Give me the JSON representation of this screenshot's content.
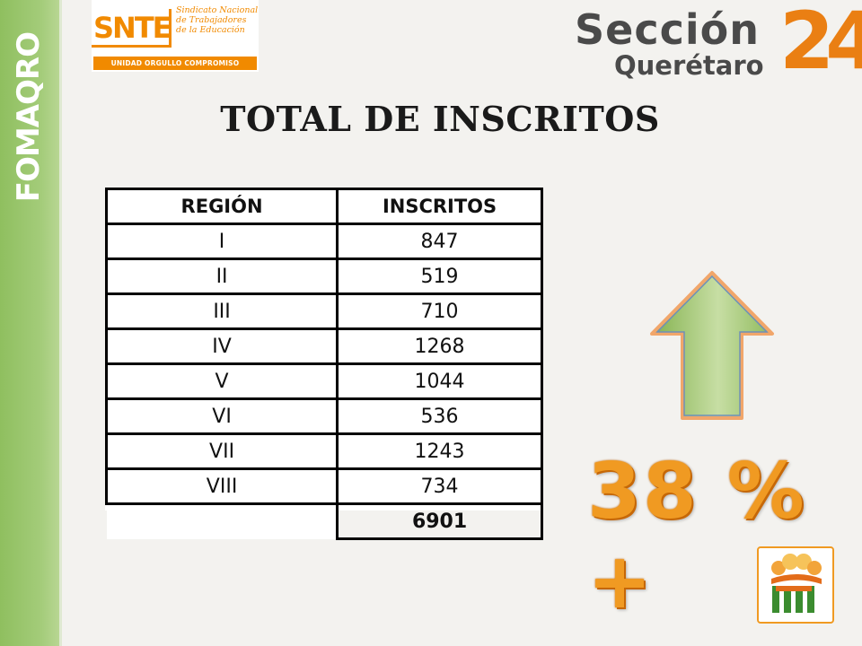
{
  "side": {
    "label": "FOMAQRO"
  },
  "snte": {
    "mark": "SNTE",
    "name": "Sindicato Nacional de Trabajadores de la Educación",
    "tagline": "UNIDAD ORGULLO COMPROMISO"
  },
  "seccion": {
    "title": "Sección",
    "subtitle": "Querétaro",
    "number": "24"
  },
  "title": "TOTAL DE INSCRITOS",
  "table": {
    "headers": [
      "REGIÓN",
      "INSCRITOS"
    ],
    "rows": [
      [
        "I",
        "847"
      ],
      [
        "II",
        "519"
      ],
      [
        "III",
        "710"
      ],
      [
        "IV",
        "1268"
      ],
      [
        "V",
        "1044"
      ],
      [
        "VI",
        "536"
      ],
      [
        "VII",
        "1243"
      ],
      [
        "VIII",
        "734"
      ]
    ],
    "total": "6901"
  },
  "increase": "38 % +",
  "colors": {
    "side_band": "#a4cc7a",
    "accent_orange": "#f09a22",
    "arrow_green": "#9dc36a"
  },
  "icons": [
    "up-arrow-icon",
    "people-logo-icon"
  ]
}
